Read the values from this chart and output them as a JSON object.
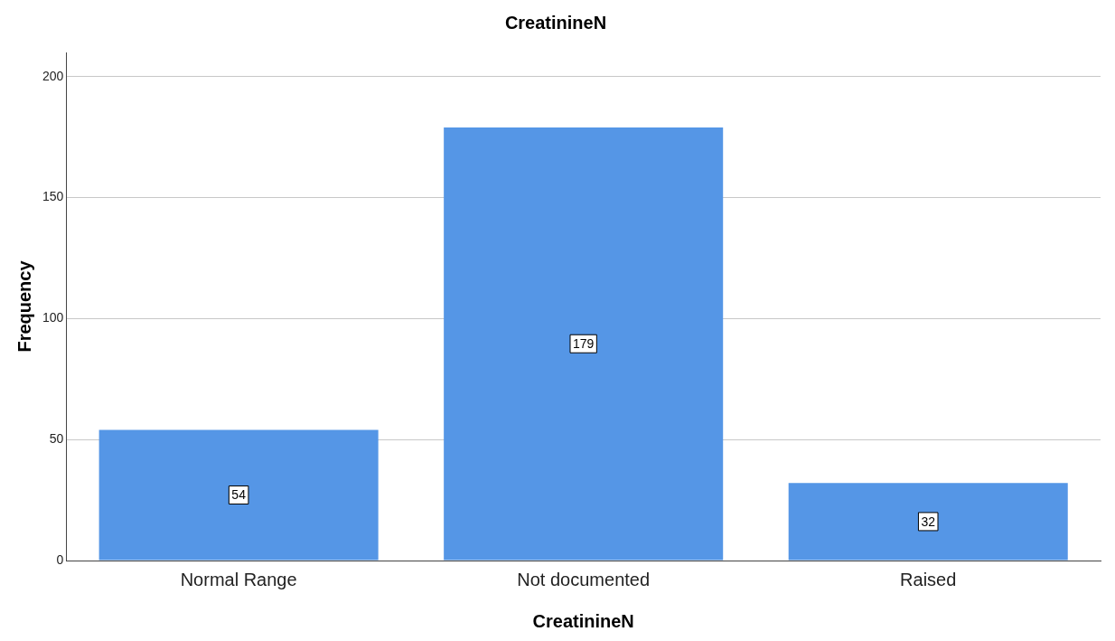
{
  "chart_data": {
    "type": "bar",
    "title": "CreatinineN",
    "xlabel": "CreatinineN",
    "ylabel": "Frequency",
    "categories": [
      "Normal Range",
      "Not documented",
      "Raised"
    ],
    "values": [
      54,
      179,
      32
    ],
    "color": "#5596e6",
    "ylim": [
      0,
      210
    ],
    "yticks": [
      0,
      50,
      100,
      150,
      200
    ],
    "grid": "y",
    "data_labels": true
  }
}
